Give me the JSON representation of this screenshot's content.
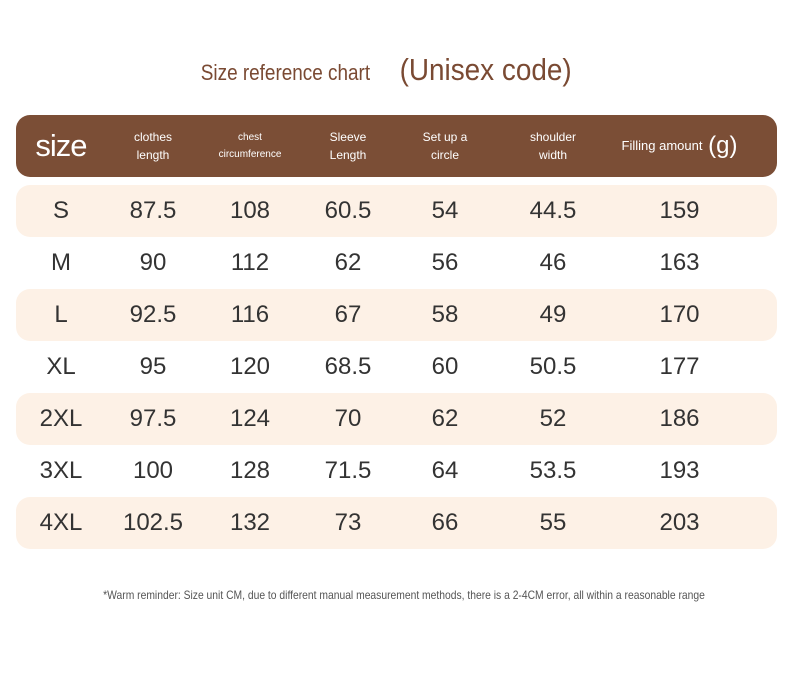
{
  "title": {
    "prefix": "Size reference chart",
    "emphasis": "(Unisex code)"
  },
  "header": {
    "size": "size",
    "clothes_length_1": "clothes",
    "clothes_length_2": "length",
    "chest_1": "chest",
    "chest_2": "circumference",
    "sleeve_1": "Sleeve",
    "sleeve_2": "Length",
    "circle_1": "Set up a",
    "circle_2": "circle",
    "shoulder_1": "shoulder",
    "shoulder_2": "width",
    "filling": "Filling amount",
    "filling_unit": "(g)"
  },
  "rows": [
    {
      "size": "S",
      "length": "87.5",
      "chest": "108",
      "sleeve": "60.5",
      "circle": "54",
      "shoulder": "44.5",
      "filling": "159"
    },
    {
      "size": "M",
      "length": "90",
      "chest": "112",
      "sleeve": "62",
      "circle": "56",
      "shoulder": "46",
      "filling": "163"
    },
    {
      "size": "L",
      "length": "92.5",
      "chest": "116",
      "sleeve": "67",
      "circle": "58",
      "shoulder": "49",
      "filling": "170"
    },
    {
      "size": "XL",
      "length": "95",
      "chest": "120",
      "sleeve": "68.5",
      "circle": "60",
      "shoulder": "50.5",
      "filling": "177"
    },
    {
      "size": "2XL",
      "length": "97.5",
      "chest": "124",
      "sleeve": "70",
      "circle": "62",
      "shoulder": "52",
      "filling": "186"
    },
    {
      "size": "3XL",
      "length": "100",
      "chest": "128",
      "sleeve": "71.5",
      "circle": "64",
      "shoulder": "53.5",
      "filling": "193"
    },
    {
      "size": "4XL",
      "length": "102.5",
      "chest": "132",
      "sleeve": "73",
      "circle": "66",
      "shoulder": "55",
      "filling": "203"
    }
  ],
  "note": "*Warm reminder: Size unit CM, due to different manual measurement methods, there is a 2-4CM error, all within a reasonable range",
  "colors": {
    "header_bg": "#7b4e36",
    "title": "#7a4a33",
    "row_shade": "#fdf1e6"
  }
}
